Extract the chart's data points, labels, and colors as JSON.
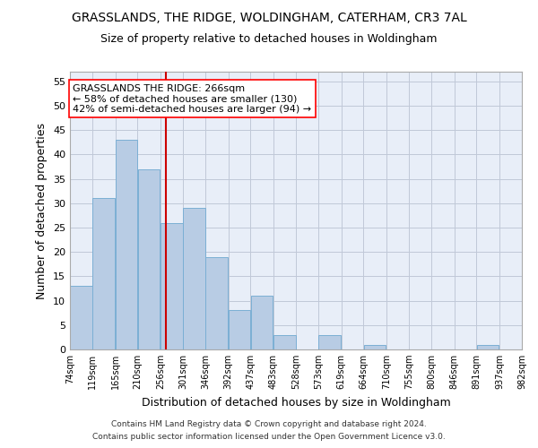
{
  "title1": "GRASSLANDS, THE RIDGE, WOLDINGHAM, CATERHAM, CR3 7AL",
  "title2": "Size of property relative to detached houses in Woldingham",
  "xlabel": "Distribution of detached houses by size in Woldingham",
  "ylabel": "Number of detached properties",
  "footnote1": "Contains HM Land Registry data © Crown copyright and database right 2024.",
  "footnote2": "Contains public sector information licensed under the Open Government Licence v3.0.",
  "annotation_line1": "GRASSLANDS THE RIDGE: 266sqm",
  "annotation_line2": "← 58% of detached houses are smaller (130)",
  "annotation_line3": "42% of semi-detached houses are larger (94) →",
  "bar_color": "#b8cce4",
  "bar_edge_color": "#7bafd4",
  "vline_color": "#cc0000",
  "vline_x": 266,
  "bin_edges": [
    74,
    119,
    165,
    210,
    256,
    301,
    346,
    392,
    437,
    483,
    528,
    573,
    619,
    664,
    710,
    755,
    800,
    846,
    891,
    937,
    982
  ],
  "bar_heights": [
    13,
    31,
    43,
    37,
    26,
    29,
    19,
    8,
    11,
    3,
    0,
    3,
    0,
    1,
    0,
    0,
    0,
    0,
    1,
    0
  ],
  "ylim": [
    0,
    57
  ],
  "yticks": [
    0,
    5,
    10,
    15,
    20,
    25,
    30,
    35,
    40,
    45,
    50,
    55
  ],
  "bg_color": "#e8eef8",
  "grid_color": "#c0c8d8",
  "title_fontsize": 10,
  "subtitle_fontsize": 9,
  "annotation_fontsize": 8
}
